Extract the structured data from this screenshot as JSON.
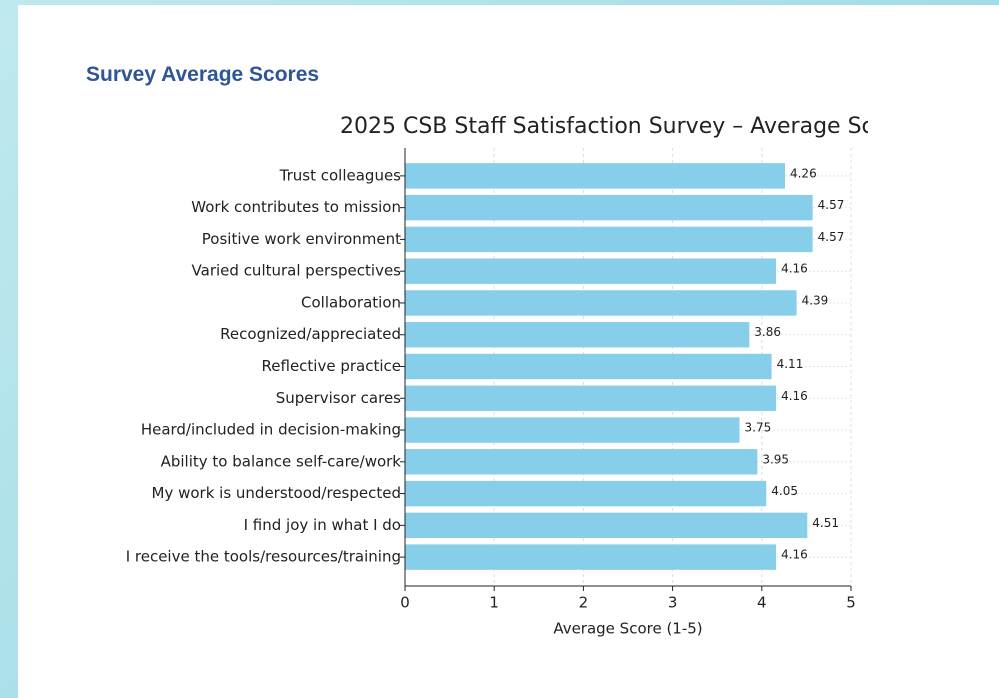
{
  "heading": "Survey Average Scores",
  "chart_data": {
    "type": "bar",
    "orientation": "horizontal",
    "title": "2025 CSB Staff Satisfaction Survey – Average Sc",
    "x_label": "Average Score (1-5)",
    "categories": [
      "Trust colleagues",
      "Work contributes to mission",
      "Positive work environment",
      "Varied cultural perspectives",
      "Collaboration",
      "Recognized/appreciated",
      "Reflective practice",
      "Supervisor cares",
      "Heard/included in decision-making",
      "Ability to balance self-care/work",
      "My work is understood/respected",
      "I find joy in what I do",
      "I receive the tools/resources/training"
    ],
    "values": [
      4.26,
      4.57,
      4.57,
      4.16,
      4.39,
      3.86,
      4.11,
      4.16,
      3.75,
      3.95,
      4.05,
      4.51,
      4.16
    ],
    "color": "#87ceeb",
    "xlim": [
      0,
      5
    ],
    "xticks": [
      0,
      1,
      2,
      3,
      4,
      5
    ],
    "grid": true
  }
}
